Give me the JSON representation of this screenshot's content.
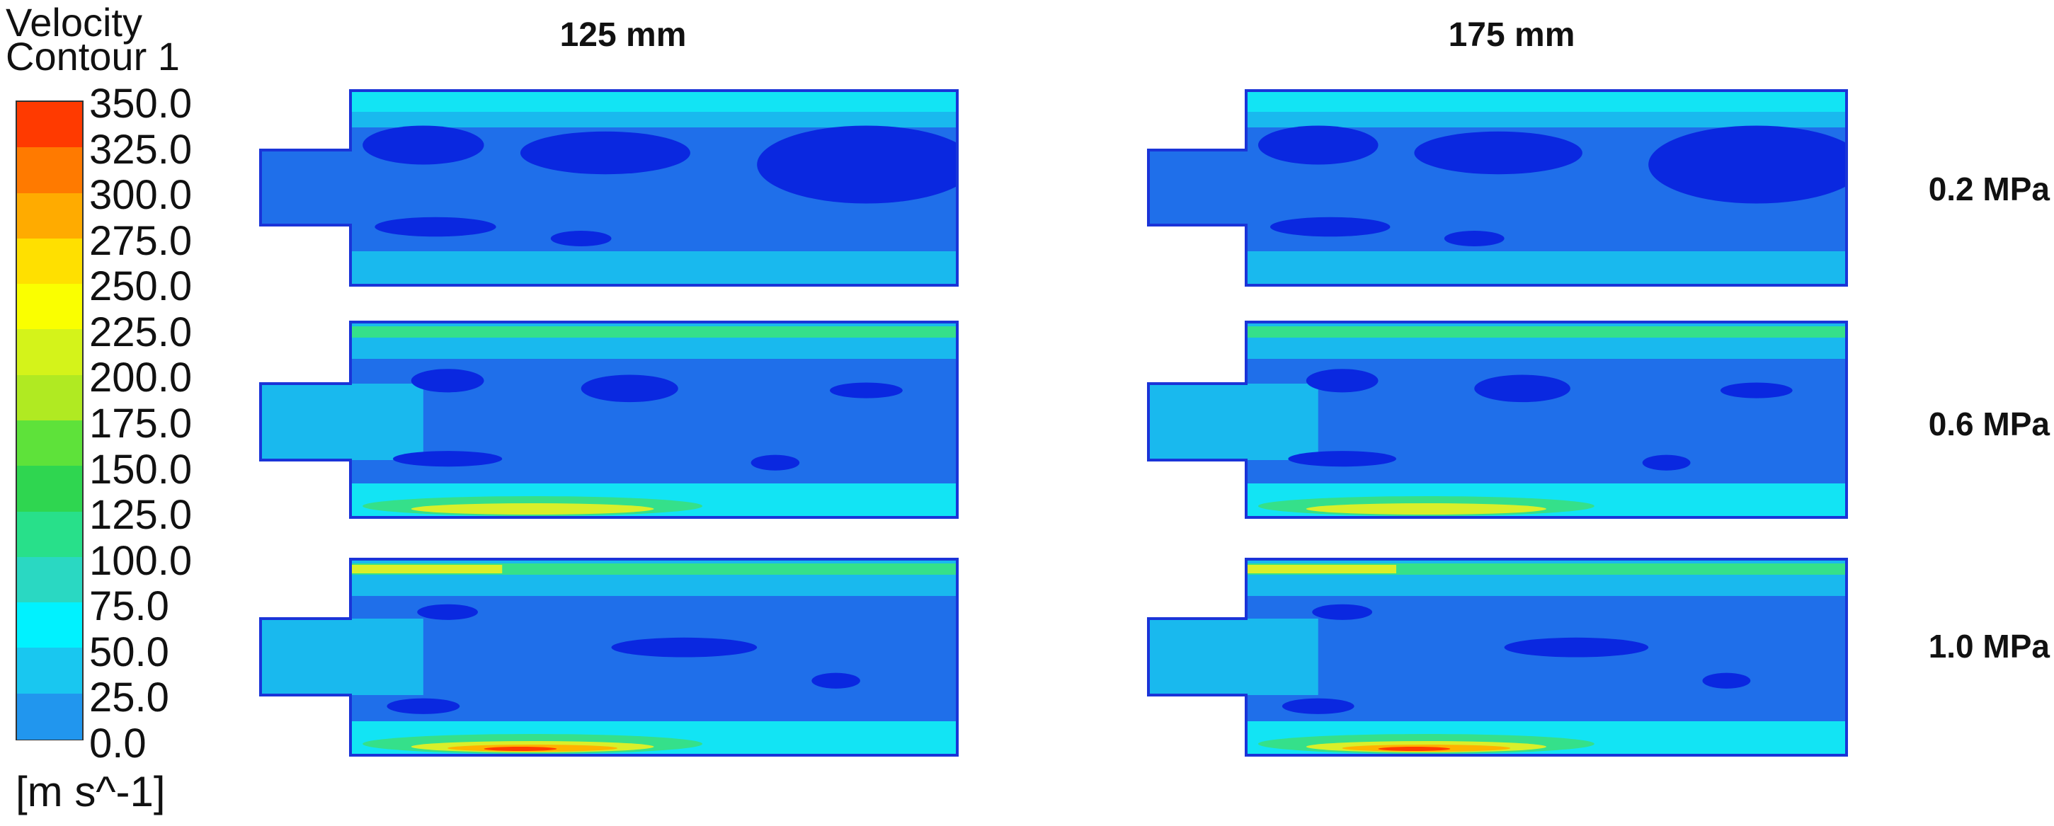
{
  "legend": {
    "title_line1": "Velocity",
    "title_line2": "Contour 1",
    "unit": "[m s^-1]",
    "ticks": [
      "350.0",
      "325.0",
      "300.0",
      "275.0",
      "250.0",
      "225.0",
      "200.0",
      "175.0",
      "150.0",
      "125.0",
      "100.0",
      "75.0",
      "50.0",
      "25.0",
      "0.0"
    ],
    "colors": [
      "#ff3a00",
      "#ff7a00",
      "#ffab00",
      "#ffe000",
      "#faff00",
      "#d4f31a",
      "#b0ea22",
      "#5ee23a",
      "#2fd650",
      "#28e08a",
      "#2ad8c2",
      "#00f2ff",
      "#19c7f0",
      "#2196ee",
      "#0a3ef0"
    ]
  },
  "columns": [
    "125 mm",
    "175 mm"
  ],
  "rows": [
    "0.2 MPa",
    "0.6 MPa",
    "1.0 MPa"
  ],
  "palette": {
    "deep": "#0a28e0",
    "low": "#1f6fea",
    "mid": "#19b9ee",
    "cyan": "#12e4f4",
    "green": "#35e08a",
    "yellow": "#d9ef2a",
    "orange": "#ffb300",
    "red": "#ff3d00",
    "wall": "#1a34d8"
  }
}
